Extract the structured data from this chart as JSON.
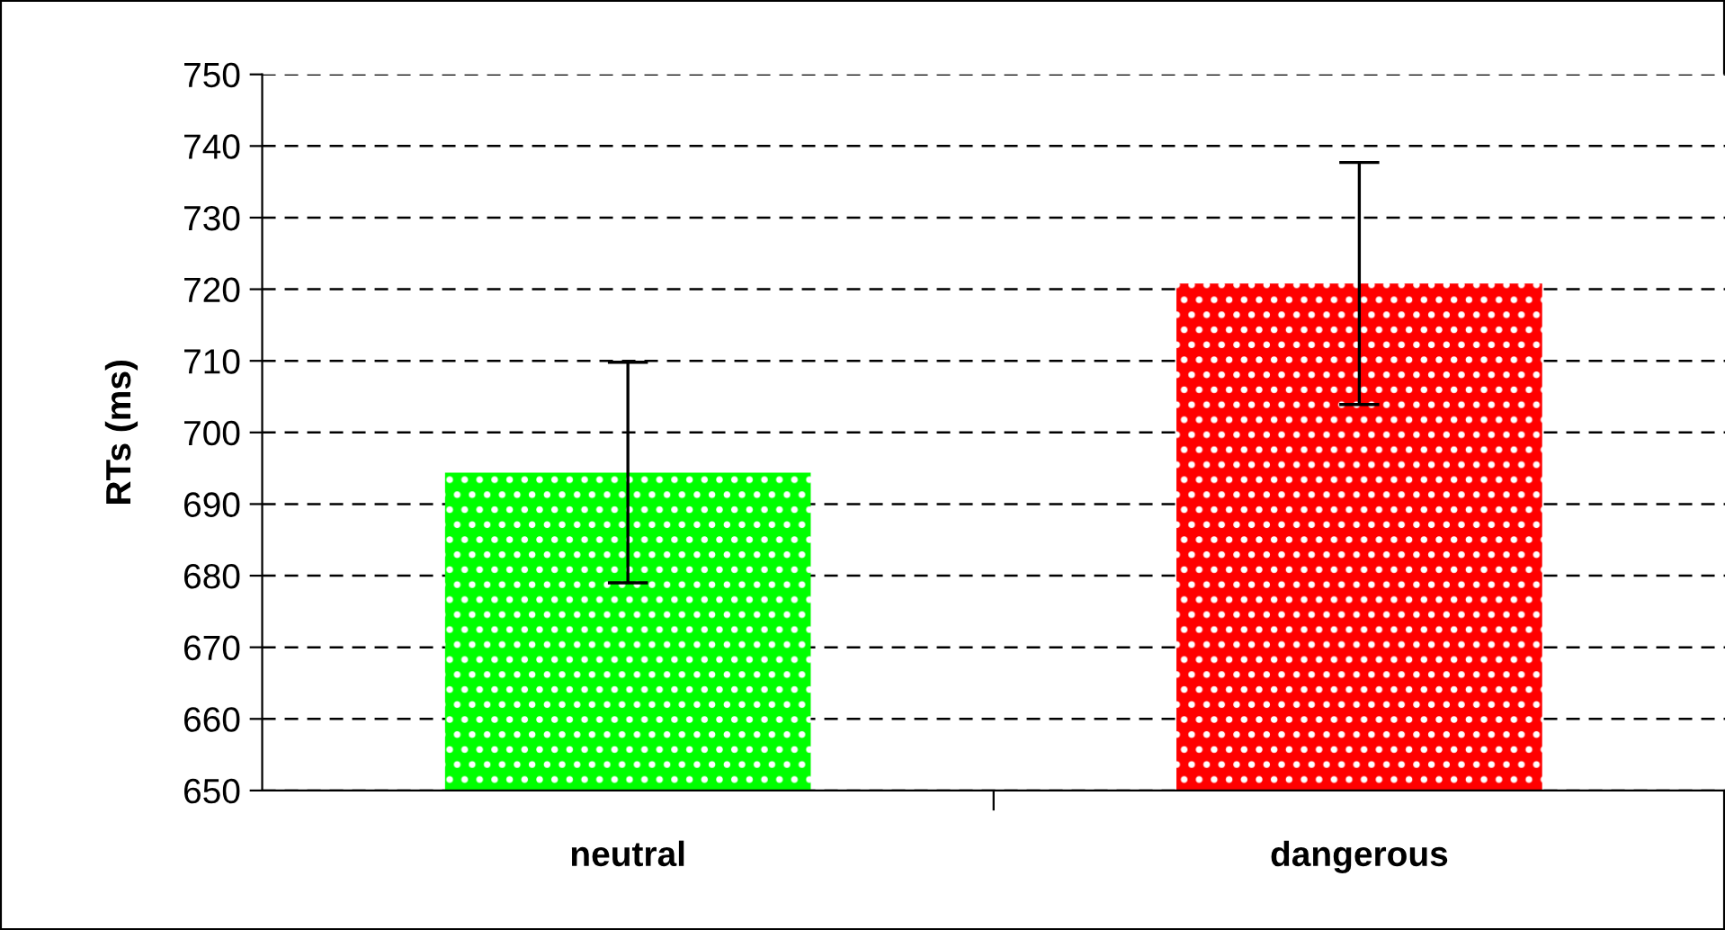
{
  "chart_data": {
    "type": "bar",
    "ylabel": "RTs (ms)",
    "categories": [
      "neutral",
      "dangerous"
    ],
    "values": [
      694.4,
      720.8
    ],
    "colors": [
      "#00ff00",
      "#ff0000"
    ],
    "errors": [
      15.4,
      16.9
    ],
    "ylim": [
      650,
      750
    ],
    "yticks": [
      650,
      660,
      670,
      680,
      690,
      700,
      710,
      720,
      730,
      740,
      750
    ],
    "grid": "y"
  }
}
